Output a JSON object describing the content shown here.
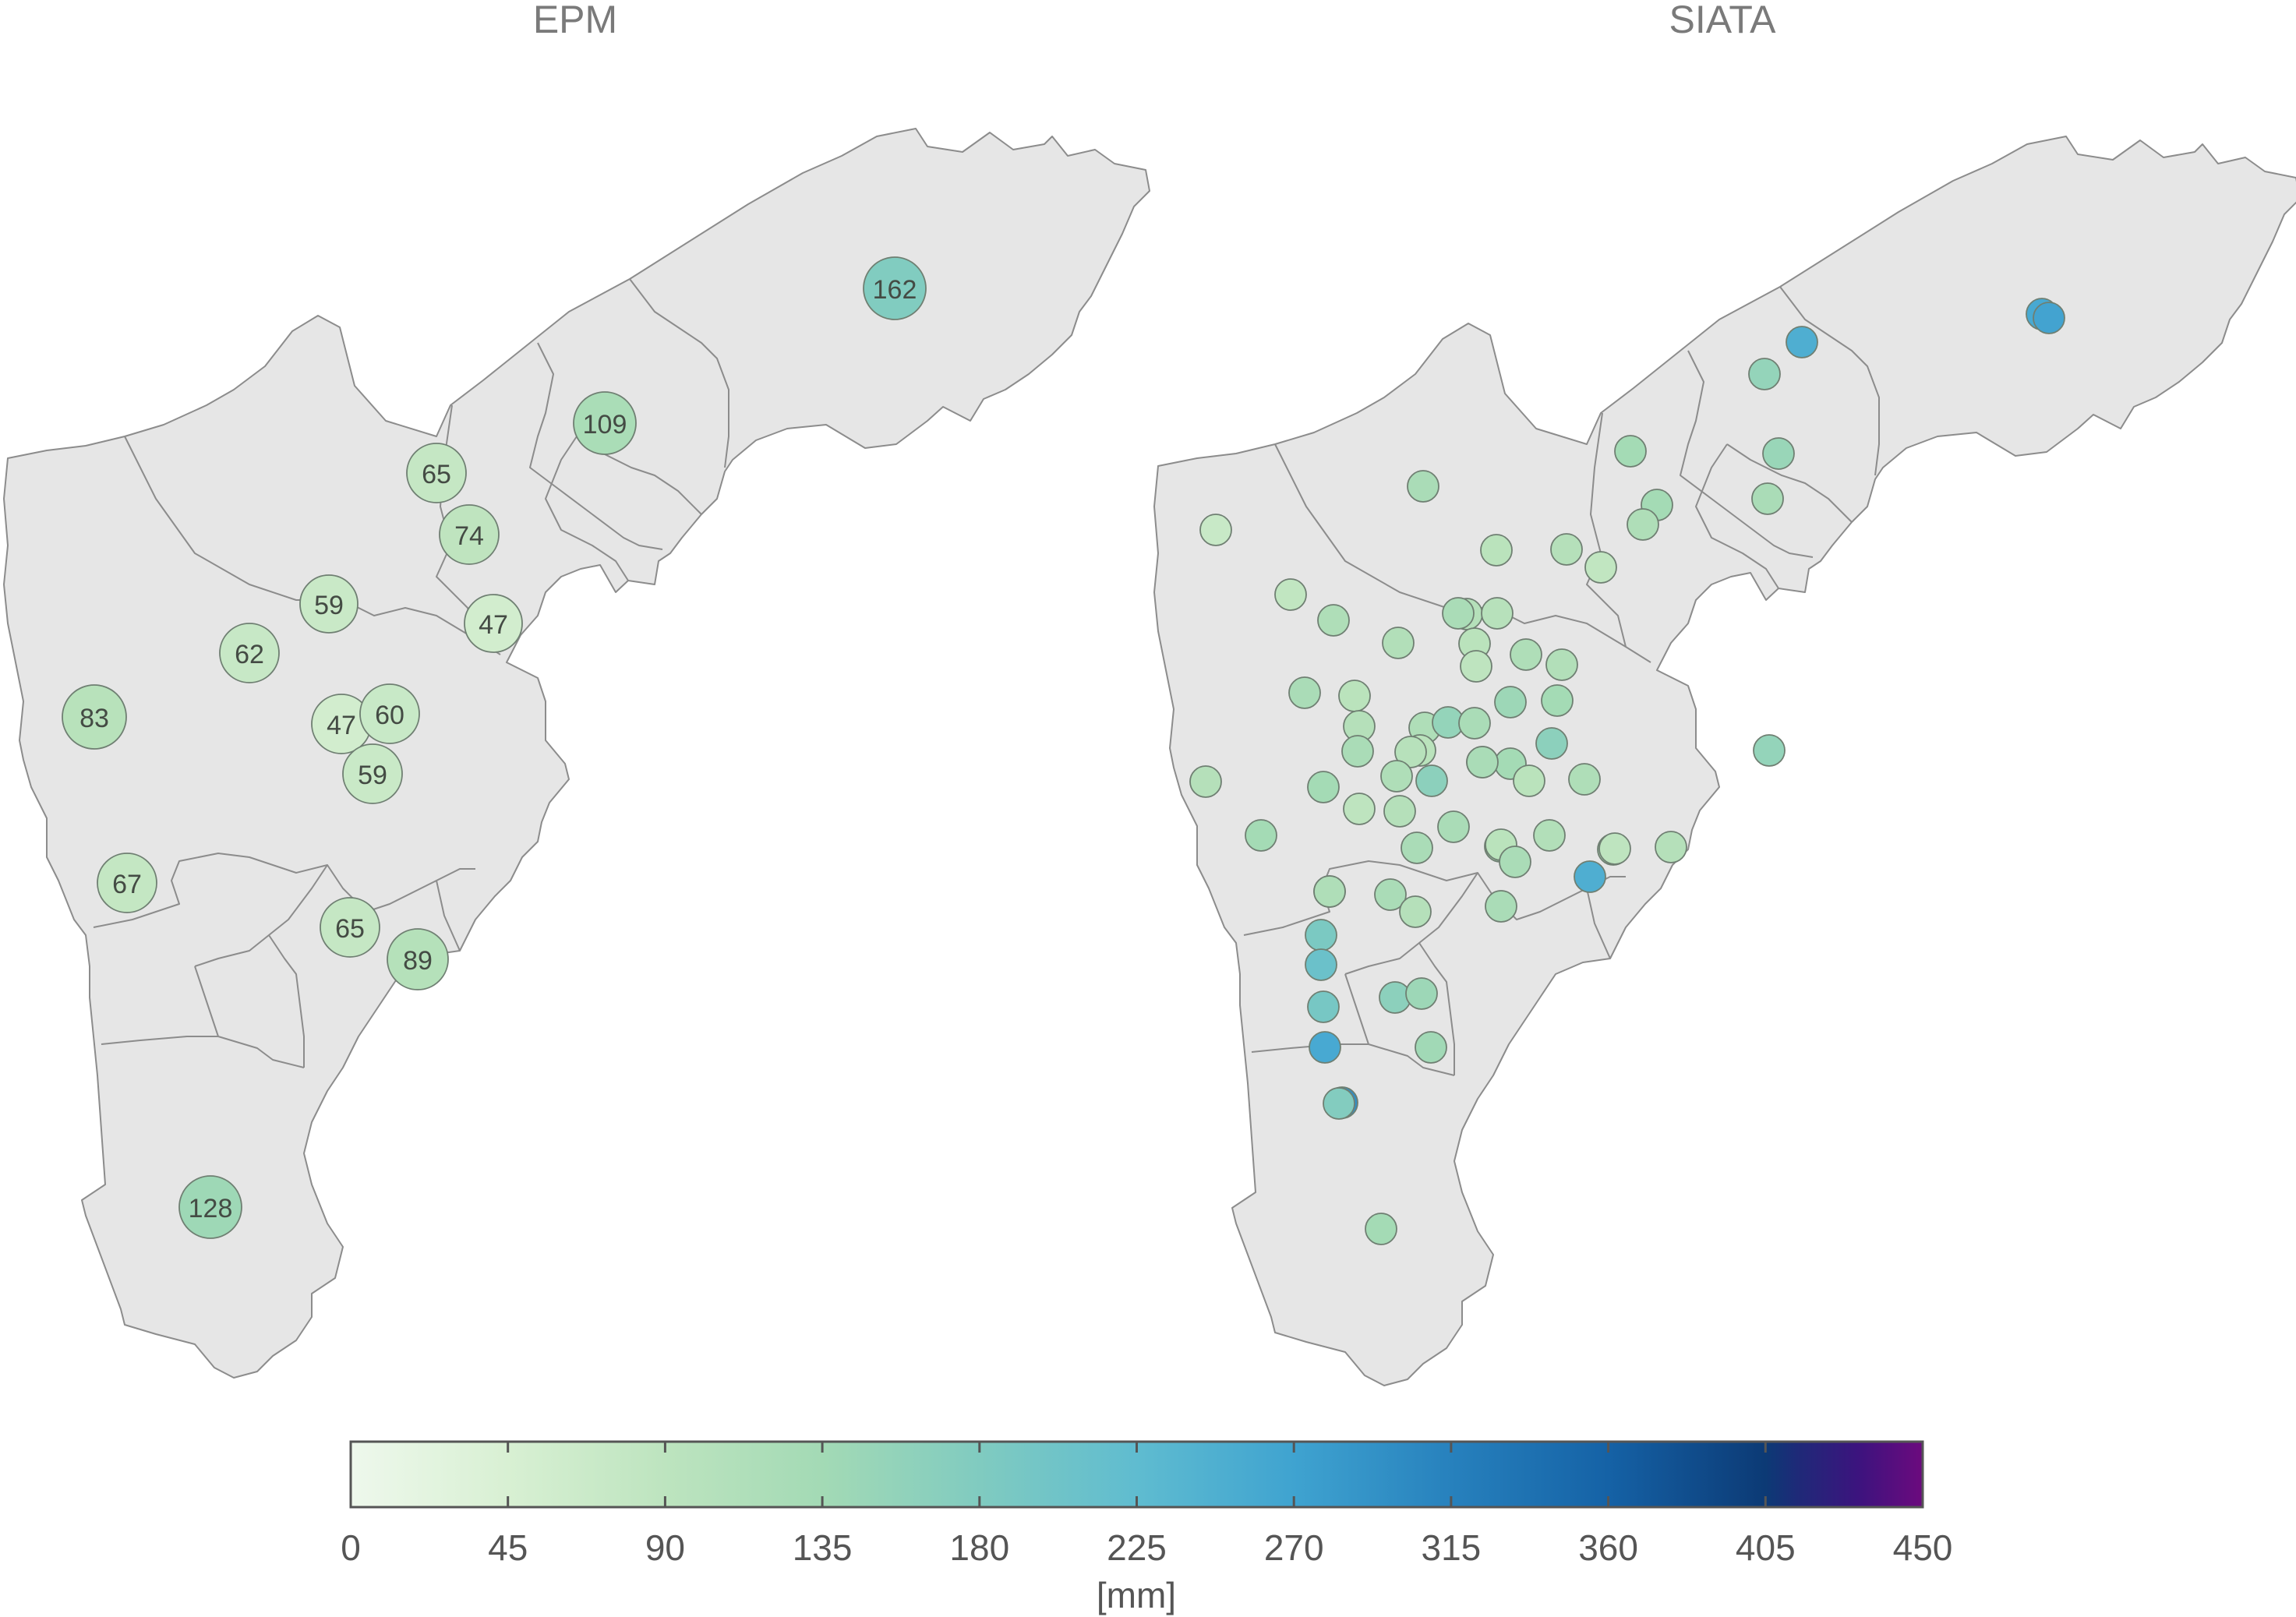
{
  "panels": [
    {
      "title": "EPM",
      "stations": [
        {
          "label": "162",
          "value": 162
        },
        {
          "label": "109",
          "value": 109
        },
        {
          "label": "65",
          "value": 65
        },
        {
          "label": "74",
          "value": 74
        },
        {
          "label": "59",
          "value": 59
        },
        {
          "label": "47",
          "value": 47
        },
        {
          "label": "62",
          "value": 62
        },
        {
          "label": "83",
          "value": 83
        },
        {
          "label": "47",
          "value": 47
        },
        {
          "label": "60",
          "value": 60
        },
        {
          "label": "59",
          "value": 59
        },
        {
          "label": "67",
          "value": 67
        },
        {
          "label": "65",
          "value": 65
        },
        {
          "label": "89",
          "value": 89
        },
        {
          "label": "128",
          "value": 128
        }
      ]
    },
    {
      "title": "SIATA",
      "station_values": [
        230,
        240,
        250,
        140,
        120,
        135,
        110,
        120,
        100,
        110,
        60,
        90,
        70,
        80,
        70,
        100,
        90,
        110,
        85,
        95,
        80,
        100,
        75,
        95,
        110,
        80,
        90,
        100,
        140,
        110,
        130,
        120,
        80,
        85,
        110,
        90,
        120,
        150,
        90,
        120,
        100,
        150,
        110,
        80,
        100,
        75,
        90,
        110,
        120,
        100,
        110,
        95,
        95,
        90,
        80,
        110,
        75,
        100,
        140,
        230,
        110,
        90,
        110,
        100,
        170,
        190,
        175,
        240,
        280,
        150,
        130,
        125,
        120,
        160
      ]
    }
  ],
  "colorbar": {
    "min": 0,
    "max": 450,
    "ticks": [
      "0",
      "45",
      "90",
      "135",
      "180",
      "225",
      "270",
      "315",
      "360",
      "405",
      "450"
    ],
    "unit": "[mm]",
    "colors": [
      "#eef8ec",
      "#d6efd1",
      "#b9e2bb",
      "#a3dab5",
      "#80cbc0",
      "#5fbcd0",
      "#45a6d2",
      "#2f89c2",
      "#1667ab",
      "#0c3f7d",
      "#2a1f7f",
      "#6a0b7c"
    ]
  }
}
